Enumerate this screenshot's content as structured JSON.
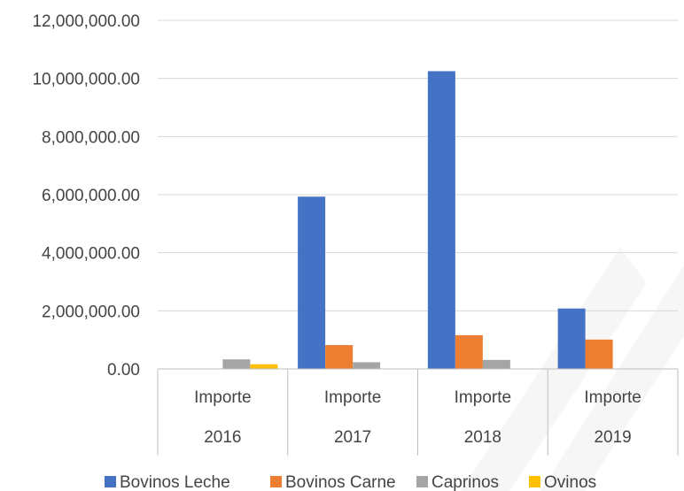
{
  "chart_data": {
    "type": "bar",
    "categories": [
      {
        "line1": "Importe",
        "line2": "2016"
      },
      {
        "line1": "Importe",
        "line2": "2017"
      },
      {
        "line1": "Importe",
        "line2": "2018"
      },
      {
        "line1": "Importe",
        "line2": "2019"
      }
    ],
    "series": [
      {
        "name": "Bovinos Leche",
        "color": "#4472C4",
        "values": [
          0,
          5930000,
          10250000,
          2080000
        ]
      },
      {
        "name": "Bovinos Carne",
        "color": "#ED7D31",
        "values": [
          0,
          820000,
          1160000,
          1010000
        ]
      },
      {
        "name": "Caprinos",
        "color": "#A5A5A5",
        "values": [
          330000,
          230000,
          310000,
          0
        ]
      },
      {
        "name": "Ovinos",
        "color": "#FFC000",
        "values": [
          160000,
          0,
          0,
          0
        ]
      }
    ],
    "y_ticks": [
      "0.00",
      "2,000,000.00",
      "4,000,000.00",
      "6,000,000.00",
      "8,000,000.00",
      "10,000,000.00",
      "12,000,000.00"
    ],
    "ylim": [
      0,
      12000000
    ],
    "title": "",
    "xlabel": "",
    "ylabel": "",
    "grid": true,
    "legend_position": "bottom"
  }
}
